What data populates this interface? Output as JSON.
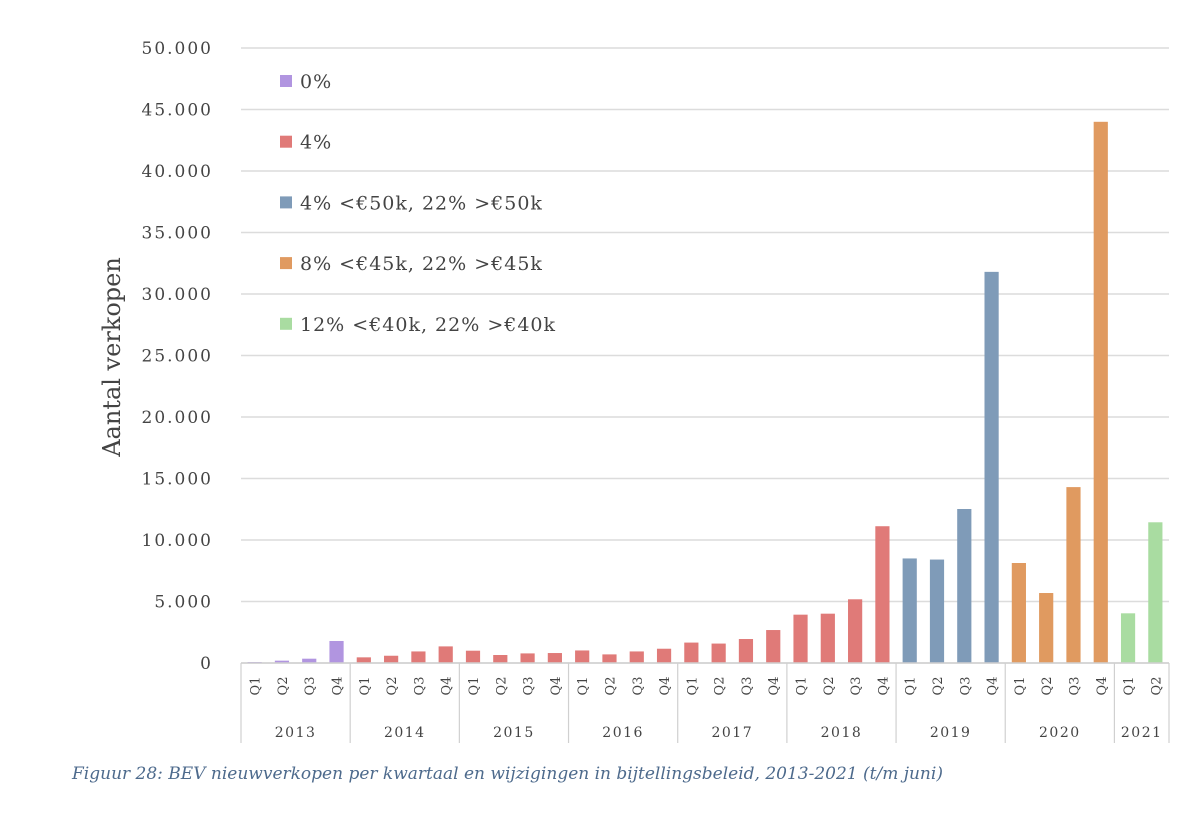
{
  "chart_data": {
    "type": "bar",
    "title": "",
    "ylabel": "Aantal verkopen",
    "xlabel": "",
    "ylim": [
      0,
      50000
    ],
    "yticks": [
      "0",
      "5.000",
      "10.000",
      "15.000",
      "20.000",
      "25.000",
      "30.000",
      "35.000",
      "40.000",
      "45.000",
      "50.000"
    ],
    "grid": true,
    "legend_position": "top-left",
    "years": [
      "2013",
      "2014",
      "2015",
      "2016",
      "2017",
      "2018",
      "2019",
      "2020",
      "2021"
    ],
    "quarters_per_year": [
      4,
      4,
      4,
      4,
      4,
      4,
      4,
      4,
      2
    ],
    "quarter_labels": [
      "Q1",
      "Q2",
      "Q3",
      "Q4"
    ],
    "series": [
      {
        "name": "0%",
        "color": "#b195e0",
        "start": 0,
        "values": [
          80,
          190,
          350,
          1790
        ]
      },
      {
        "name": "4%",
        "color": "#e07a78",
        "start": 4,
        "values": [
          460,
          590,
          940,
          1350,
          1000,
          650,
          780,
          810,
          1020,
          700,
          940,
          1160,
          1660,
          1580,
          1950,
          2680,
          3930,
          4010,
          5180,
          11120
        ]
      },
      {
        "name": "4% <€50k, 22% >€50k",
        "color": "#7f9bb8",
        "start": 24,
        "values": [
          8500,
          8410,
          12520,
          31800
        ]
      },
      {
        "name": "8% <€45k, 22% >€45k",
        "color": "#e09a60",
        "start": 28,
        "values": [
          8130,
          5690,
          14300,
          44000
        ]
      },
      {
        "name": "12% <€40k, 22% >€40k",
        "color": "#a9dca1",
        "start": 32,
        "values": [
          4040,
          11440
        ]
      }
    ]
  },
  "caption": "Figuur 28: BEV nieuwverkopen per kwartaal en wijzigingen in bijtellingsbeleid, 2013-2021 (t/m juni)"
}
